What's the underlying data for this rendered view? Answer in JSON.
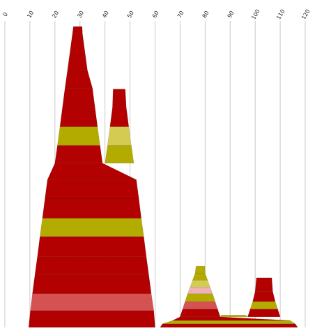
{
  "chart_data": {
    "type": "area",
    "xlim": [
      0,
      120
    ],
    "x_ticks": [
      0,
      10,
      20,
      30,
      40,
      50,
      60,
      70,
      80,
      90,
      100,
      110,
      120
    ],
    "tick_labels": [
      "0",
      "10",
      "20",
      "30",
      "40",
      "50",
      "60",
      "70",
      "80",
      "90",
      "100",
      "110",
      "120"
    ],
    "ylim": [
      0,
      100
    ],
    "grid": true,
    "legend": "none",
    "colors": {
      "dark_red": "#b30000",
      "olive": "#b3ab00",
      "light_olive": "#d4cc52",
      "rose": "#d45252",
      "pink": "#eeb3b3"
    },
    "shapes": [
      {
        "name": "peak-a",
        "x_center": 30,
        "bands": [
          {
            "y0": 0,
            "y1": 5.6,
            "xl": 9.5,
            "xr": 60,
            "color": "dark_red"
          },
          {
            "y0": 5.6,
            "y1": 11.2,
            "xl": 10.2,
            "xr": 59.5,
            "color": "rose"
          },
          {
            "y0": 11.2,
            "y1": 17.5,
            "xl": 11,
            "xr": 58.5,
            "color": "dark_red"
          },
          {
            "y0": 17.5,
            "y1": 23.6,
            "xl": 12,
            "xr": 57.5,
            "color": "dark_red"
          },
          {
            "y0": 23.6,
            "y1": 30.2,
            "xl": 13,
            "xr": 56.5,
            "color": "dark_red"
          },
          {
            "y0": 30.2,
            "y1": 36.3,
            "xl": 14,
            "xr": 55.5,
            "color": "olive"
          },
          {
            "y0": 36.3,
            "y1": 42.8,
            "xl": 15,
            "xr": 54.5,
            "color": "dark_red"
          },
          {
            "y0": 42.8,
            "y1": 49.1,
            "xl": 16,
            "xr": 53.5,
            "color": "dark_red"
          },
          {
            "y0": 49.1,
            "y1": 54.6,
            "xl": 17,
            "xr": 52.5,
            "color": "dark_red"
          },
          {
            "y0": 54.6,
            "y1": 60.5,
            "xl": 20,
            "xr": 39,
            "color": "dark_red"
          },
          {
            "y0": 60.5,
            "y1": 66.7,
            "xl": 21,
            "xr": 38,
            "color": "olive"
          },
          {
            "y0": 66.7,
            "y1": 73.1,
            "xl": 22,
            "xr": 37,
            "color": "dark_red"
          },
          {
            "y0": 73.1,
            "y1": 79.5,
            "xl": 23,
            "xr": 36,
            "color": "dark_red"
          },
          {
            "y0": 79.5,
            "y1": 85.4,
            "xl": 24,
            "xr": 35,
            "color": "dark_red"
          },
          {
            "y0": 85.4,
            "y1": 91.5,
            "xl": 25,
            "xr": 33,
            "color": "dark_red"
          },
          {
            "y0": 91.5,
            "y1": 97.7,
            "xl": 26,
            "xr": 32,
            "color": "dark_red"
          },
          {
            "y0": 97.7,
            "y1": 100,
            "xl": 27,
            "xr": 31,
            "color": "dark_red"
          }
        ]
      },
      {
        "name": "peak-b",
        "x_center": 45,
        "bands": [
          {
            "y0": 54.6,
            "y1": 60.5,
            "xl": 40,
            "xr": 51.5,
            "color": "olive"
          },
          {
            "y0": 60.5,
            "y1": 66.7,
            "xl": 41,
            "xr": 50.5,
            "color": "light_olive"
          },
          {
            "y0": 66.7,
            "y1": 73.1,
            "xl": 42,
            "xr": 49.5,
            "color": "dark_red"
          },
          {
            "y0": 73.1,
            "y1": 79.2,
            "xl": 43,
            "xr": 48.5,
            "color": "dark_red"
          }
        ]
      },
      {
        "name": "peak-c",
        "x_center": 79,
        "bands": [
          {
            "y0": 0,
            "y1": 1.2,
            "xl": 62,
            "xr": 117,
            "color": "dark_red"
          },
          {
            "y0": 1.2,
            "y1": 2.3,
            "xl": 63,
            "xr": 116,
            "color": "olive"
          },
          {
            "y0": 2.3,
            "y1": 3.5,
            "xl": 67,
            "xr": 114,
            "color": "dark_red"
          },
          {
            "y0": 3.5,
            "y1": 6.1,
            "xl": 70,
            "xr": 86,
            "color": "dark_red"
          },
          {
            "y0": 6.1,
            "y1": 8.6,
            "xl": 71,
            "xr": 85,
            "color": "rose"
          },
          {
            "y0": 8.6,
            "y1": 11.2,
            "xl": 72,
            "xr": 84,
            "color": "olive"
          },
          {
            "y0": 11.2,
            "y1": 13.4,
            "xl": 73,
            "xr": 83,
            "color": "pink"
          },
          {
            "y0": 13.4,
            "y1": 15.7,
            "xl": 74,
            "xr": 82,
            "color": "light_olive"
          },
          {
            "y0": 15.7,
            "y1": 18.0,
            "xl": 75,
            "xr": 81,
            "color": "olive"
          },
          {
            "y0": 18.0,
            "y1": 20.4,
            "xl": 76,
            "xr": 80,
            "color": "olive"
          }
        ]
      },
      {
        "name": "peak-d",
        "x_center": 104,
        "bands": [
          {
            "y0": 3.5,
            "y1": 6.1,
            "xl": 97,
            "xr": 110,
            "color": "dark_red"
          },
          {
            "y0": 6.1,
            "y1": 8.6,
            "xl": 98,
            "xr": 109,
            "color": "olive"
          },
          {
            "y0": 8.6,
            "y1": 12.0,
            "xl": 99,
            "xr": 108,
            "color": "dark_red"
          },
          {
            "y0": 12.0,
            "y1": 16.5,
            "xl": 100,
            "xr": 107,
            "color": "dark_red"
          }
        ]
      },
      {
        "name": "baseline-strip",
        "x_center": 90,
        "bands": [
          {
            "y0": 3.5,
            "y1": 4.1,
            "xl": 86,
            "xr": 97,
            "color": "olive"
          }
        ]
      }
    ]
  }
}
